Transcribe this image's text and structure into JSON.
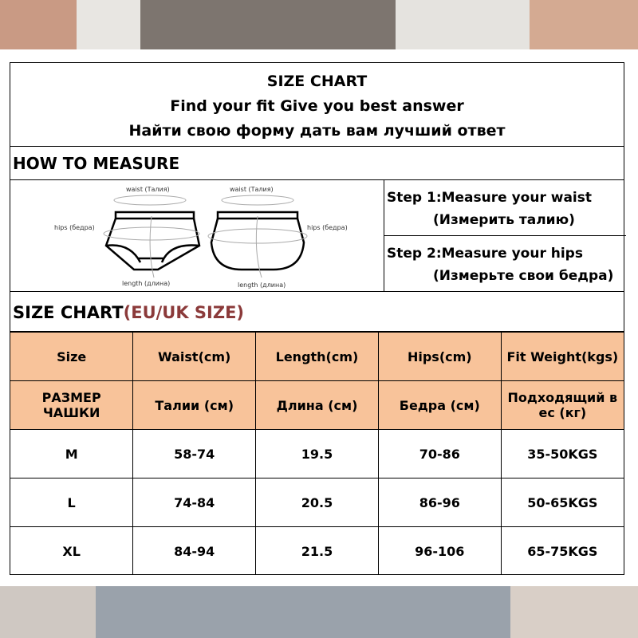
{
  "title": {
    "line1": "SIZE CHART",
    "line2": "Find your fit Give you best answer",
    "line3": "Найти свою форму дать вам лучший ответ"
  },
  "how_to_measure": "HOW TO MEASURE",
  "figure": {
    "waist": "waist (Талия)",
    "hips": "hips (бедра)",
    "length": "length (длина)"
  },
  "steps": [
    {
      "en": "Step 1:Measure your waist",
      "ru": "(Измерить талию)"
    },
    {
      "en": "Step 2:Measure your hips",
      "ru": "(Измерьте свои бедра)"
    }
  ],
  "size_chart": {
    "label": "SIZE CHART",
    "suffix": "(EU/UK SIZE)",
    "suffix_color": "#8b3a3a",
    "header_color": "#f8c39a"
  },
  "table": {
    "headers_en": [
      "Size",
      "Waist(cm)",
      "Length(cm)",
      "Hips(cm)",
      "Fit  Weight(kgs)"
    ],
    "headers_ru": [
      "РАЗМЕР ЧАШКИ",
      "Талии (см)",
      "Длина (см)",
      "Бедра (см)",
      "Подходящий в ес (кг)"
    ],
    "rows": [
      [
        "M",
        "58-74",
        "19.5",
        "70-86",
        "35-50KGS"
      ],
      [
        "L",
        "74-84",
        "20.5",
        "86-96",
        "50-65KGS"
      ],
      [
        "XL",
        "84-94",
        "21.5",
        "96-106",
        "65-75KGS"
      ]
    ]
  }
}
